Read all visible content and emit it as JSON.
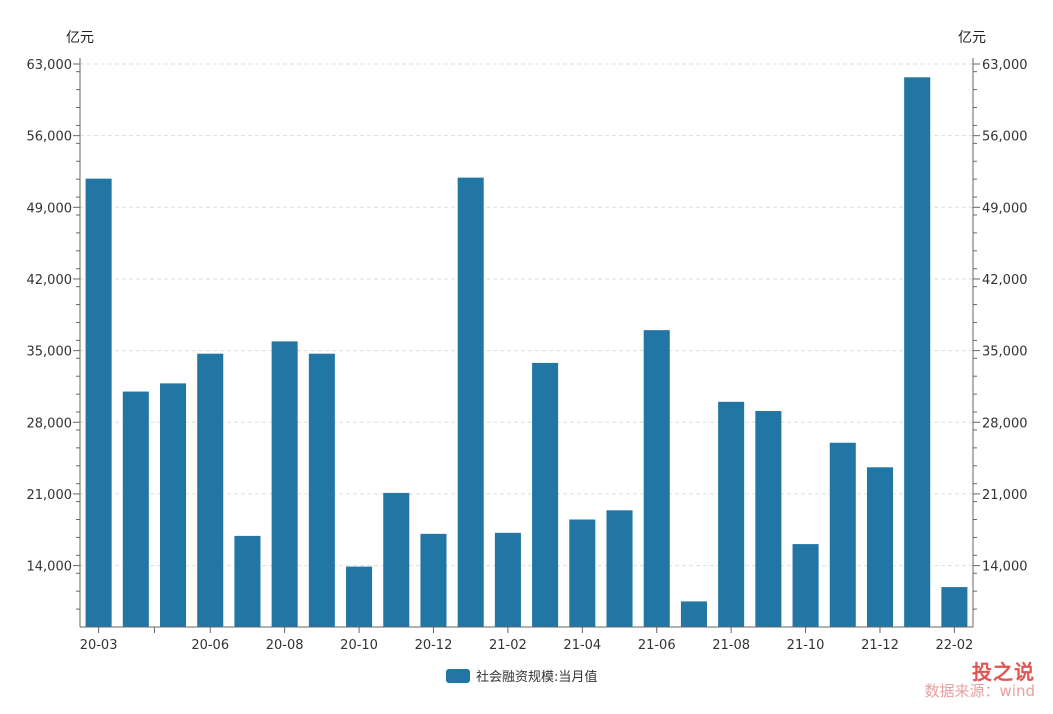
{
  "chart_data": {
    "type": "bar",
    "categories": [
      "20-03",
      "20-04",
      "20-05",
      "20-06",
      "20-07",
      "20-08",
      "20-09",
      "20-10",
      "20-11",
      "20-12",
      "21-01",
      "21-02",
      "21-03",
      "21-04",
      "21-05",
      "21-06",
      "21-07",
      "21-08",
      "21-09",
      "21-10",
      "21-11",
      "21-12",
      "22-01",
      "22-02"
    ],
    "x_tick_labels": [
      "20-03",
      "",
      "",
      "20-06",
      "",
      "20-08",
      "",
      "20-10",
      "",
      "20-12",
      "",
      "21-02",
      "",
      "21-04",
      "",
      "21-06",
      "",
      "21-08",
      "",
      "21-10",
      "",
      "21-12",
      "",
      "22-02"
    ],
    "series": [
      {
        "name": "社会融资规模:当月值",
        "color": "#2176a4",
        "values": [
          51800,
          31000,
          31800,
          34700,
          16900,
          35900,
          34700,
          13900,
          21100,
          17100,
          51900,
          17200,
          33800,
          18500,
          19400,
          37000,
          10500,
          30000,
          29100,
          16100,
          26000,
          23600,
          61700,
          11900
        ]
      }
    ],
    "ylim": [
      8000,
      63000
    ],
    "y_ticks": [
      14000,
      21000,
      28000,
      35000,
      42000,
      49000,
      56000,
      63000
    ],
    "y_tick_labels": [
      "14,000",
      "21,000",
      "28,000",
      "35,000",
      "42,000",
      "49,000",
      "56,000",
      "63,000"
    ],
    "y_unit_left": "亿元",
    "y_unit_right": "亿元",
    "grid": true,
    "legend_position": "bottom-center"
  },
  "watermark": {
    "top": "投之说",
    "bottom": "数据来源：wind"
  }
}
